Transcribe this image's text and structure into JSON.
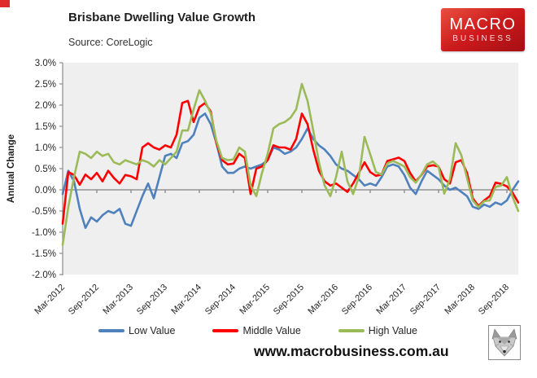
{
  "page": {
    "corner_mark_color": "#df2b2b"
  },
  "header": {
    "title": "Brisbane Dwelling Value Growth",
    "source": "Source: CoreLogic"
  },
  "logo": {
    "line1": "MACRO",
    "line2": "BUSINESS",
    "gradient_top": "#e8503f",
    "gradient_mid": "#cc1a1c",
    "gradient_bottom": "#a50f14"
  },
  "footer": {
    "url": "www.macrobusiness.com.au",
    "wolf_icon": "wolf-head-logo"
  },
  "chart_data": {
    "type": "line",
    "title": "Brisbane Dwelling Value Growth",
    "xlabel": "",
    "ylabel": "Annual Change",
    "ylim": [
      -2.0,
      3.0
    ],
    "ytick_step": 0.5,
    "grid": false,
    "plot_bg": "#efeff0",
    "axis_color": "#8c8c8c",
    "zero_line_color": "#808080",
    "tick_label_color": "#262626",
    "legend_position": "bottom",
    "x_tick_labels": [
      "Mar-2012",
      "Sep-2012",
      "Mar-2013",
      "Sep-2013",
      "Mar-2014",
      "Sep-2014",
      "Mar-2015",
      "Sep-2015",
      "Mar-2016",
      "Sep-2016",
      "Mar-2017",
      "Sep-2017",
      "Mar-2018",
      "Sep-2018"
    ],
    "x": [
      "Mar-2012",
      "Apr-2012",
      "May-2012",
      "Jun-2012",
      "Jul-2012",
      "Aug-2012",
      "Sep-2012",
      "Oct-2012",
      "Nov-2012",
      "Dec-2012",
      "Jan-2013",
      "Feb-2013",
      "Mar-2013",
      "Apr-2013",
      "May-2013",
      "Jun-2013",
      "Jul-2013",
      "Aug-2013",
      "Sep-2013",
      "Oct-2013",
      "Nov-2013",
      "Dec-2013",
      "Jan-2014",
      "Feb-2014",
      "Mar-2014",
      "Apr-2014",
      "May-2014",
      "Jun-2014",
      "Jul-2014",
      "Aug-2014",
      "Sep-2014",
      "Oct-2014",
      "Nov-2014",
      "Dec-2014",
      "Jan-2015",
      "Feb-2015",
      "Mar-2015",
      "Apr-2015",
      "May-2015",
      "Jun-2015",
      "Jul-2015",
      "Aug-2015",
      "Sep-2015",
      "Oct-2015",
      "Nov-2015",
      "Dec-2015",
      "Jan-2016",
      "Feb-2016",
      "Mar-2016",
      "Apr-2016",
      "May-2016",
      "Jun-2016",
      "Jul-2016",
      "Aug-2016",
      "Sep-2016",
      "Oct-2016",
      "Nov-2016",
      "Dec-2016",
      "Jan-2017",
      "Feb-2017",
      "Mar-2017",
      "Apr-2017",
      "May-2017",
      "Jun-2017",
      "Jul-2017",
      "Aug-2017",
      "Sep-2017",
      "Oct-2017",
      "Nov-2017",
      "Dec-2017",
      "Jan-2018",
      "Feb-2018",
      "Mar-2018",
      "Apr-2018",
      "May-2018",
      "Jun-2018",
      "Jul-2018",
      "Aug-2018",
      "Sep-2018",
      "Oct-2018",
      "Nov-2018"
    ],
    "series": [
      {
        "name": "Low Value",
        "color": "#4f81bd",
        "values": [
          -0.1,
          0.45,
          0.2,
          -0.45,
          -0.9,
          -0.65,
          -0.75,
          -0.6,
          -0.5,
          -0.55,
          -0.45,
          -0.8,
          -0.85,
          -0.5,
          -0.15,
          0.15,
          -0.2,
          0.3,
          0.8,
          0.85,
          0.75,
          1.1,
          1.15,
          1.3,
          1.7,
          1.8,
          1.55,
          1.1,
          0.55,
          0.4,
          0.4,
          0.5,
          0.55,
          0.5,
          0.55,
          0.6,
          0.7,
          1.0,
          0.95,
          0.85,
          0.9,
          1.0,
          1.2,
          1.45,
          1.2,
          1.05,
          0.95,
          0.8,
          0.6,
          0.5,
          0.45,
          0.35,
          0.25,
          0.1,
          0.15,
          0.1,
          0.3,
          0.55,
          0.6,
          0.55,
          0.35,
          0.05,
          -0.1,
          0.2,
          0.45,
          0.35,
          0.25,
          0.1,
          0.0,
          0.05,
          -0.05,
          -0.15,
          -0.4,
          -0.45,
          -0.35,
          -0.4,
          -0.3,
          -0.35,
          -0.25,
          0.0,
          0.2
        ]
      },
      {
        "name": "Middle Value",
        "color": "#fe0000",
        "values": [
          -0.8,
          0.42,
          0.35,
          0.12,
          0.36,
          0.25,
          0.4,
          0.2,
          0.45,
          0.28,
          0.15,
          0.35,
          0.32,
          0.25,
          1.0,
          1.1,
          1.0,
          0.95,
          1.05,
          1.0,
          1.3,
          2.05,
          2.1,
          1.6,
          1.95,
          2.05,
          1.85,
          1.1,
          0.7,
          0.6,
          0.62,
          0.85,
          0.75,
          -0.1,
          0.5,
          0.55,
          0.7,
          1.05,
          1.0,
          1.0,
          0.95,
          1.2,
          1.8,
          1.55,
          0.95,
          0.45,
          0.2,
          0.1,
          0.15,
          0.05,
          -0.05,
          0.15,
          0.4,
          0.65,
          0.42,
          0.33,
          0.36,
          0.68,
          0.72,
          0.76,
          0.68,
          0.4,
          0.2,
          0.35,
          0.55,
          0.58,
          0.55,
          0.25,
          0.15,
          0.65,
          0.7,
          0.4,
          -0.2,
          -0.38,
          -0.25,
          -0.15,
          0.17,
          0.14,
          0.08,
          -0.07,
          -0.3
        ]
      },
      {
        "name": "High Value",
        "color": "#9bbb59",
        "values": [
          -1.3,
          -0.4,
          0.3,
          0.9,
          0.85,
          0.75,
          0.9,
          0.8,
          0.85,
          0.65,
          0.6,
          0.7,
          0.65,
          0.6,
          0.7,
          0.65,
          0.55,
          0.7,
          0.6,
          0.75,
          0.9,
          1.4,
          1.4,
          1.9,
          2.35,
          2.1,
          1.8,
          1.15,
          0.75,
          0.7,
          0.72,
          1.0,
          0.9,
          0.1,
          -0.15,
          0.4,
          0.85,
          1.45,
          1.55,
          1.6,
          1.7,
          1.9,
          2.5,
          2.1,
          1.4,
          0.65,
          0.1,
          -0.15,
          0.3,
          0.9,
          0.2,
          -0.1,
          0.3,
          1.25,
          0.84,
          0.42,
          0.36,
          0.62,
          0.68,
          0.62,
          0.55,
          0.3,
          0.17,
          0.36,
          0.6,
          0.67,
          0.55,
          -0.09,
          0.25,
          1.1,
          0.82,
          0.28,
          -0.25,
          -0.41,
          -0.27,
          -0.25,
          0.07,
          0.1,
          0.3,
          -0.17,
          -0.5
        ]
      }
    ]
  }
}
